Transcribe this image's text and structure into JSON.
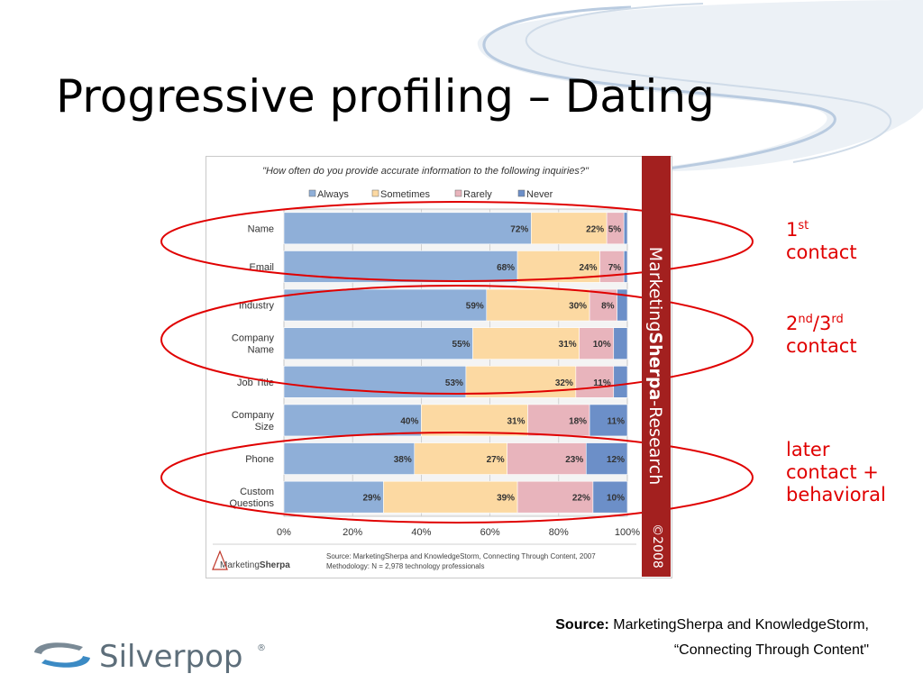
{
  "slide": {
    "title": "Progressive profiling – Dating"
  },
  "chart_data": {
    "type": "bar",
    "orientation": "horizontal",
    "stacked": true,
    "title": "\"How often do you provide accurate information to the following inquiries?\"",
    "categories": [
      [
        "Name"
      ],
      [
        "Email"
      ],
      [
        "Industry"
      ],
      [
        "Company",
        "Name"
      ],
      [
        "Job Title"
      ],
      [
        "Company",
        "Size"
      ],
      [
        "Phone"
      ],
      [
        "Custom",
        "Questions"
      ]
    ],
    "series": [
      {
        "name": "Always",
        "color": "#8fafd8",
        "values": [
          72,
          68,
          59,
          55,
          53,
          40,
          38,
          29
        ]
      },
      {
        "name": "Sometimes",
        "color": "#fcd9a2",
        "values": [
          22,
          24,
          30,
          31,
          32,
          31,
          27,
          39
        ]
      },
      {
        "name": "Rarely",
        "color": "#e8b4bc",
        "values": [
          5,
          7,
          8,
          10,
          11,
          18,
          23,
          22
        ]
      },
      {
        "name": "Never",
        "color": "#6c8fc8",
        "values": [
          1,
          1,
          3,
          4,
          4,
          11,
          12,
          10
        ]
      }
    ],
    "data_labels": [
      [
        "72%",
        "22%",
        "5%",
        ""
      ],
      [
        "68%",
        "24%",
        "7%",
        ""
      ],
      [
        "59%",
        "30%",
        "8%",
        ""
      ],
      [
        "55%",
        "31%",
        "10%",
        ""
      ],
      [
        "53%",
        "32%",
        "11%",
        ""
      ],
      [
        "40%",
        "31%",
        "18%",
        "11%"
      ],
      [
        "38%",
        "27%",
        "23%",
        "12%"
      ],
      [
        "29%",
        "39%",
        "22%",
        "10%"
      ]
    ],
    "xlim": [
      0,
      100
    ],
    "x_ticks": [
      "0%",
      "20%",
      "40%",
      "60%",
      "80%",
      "100%"
    ],
    "grid": true,
    "legend": "top",
    "source_line1": "Source: MarketingSherpa and KnowledgeStorm,  Connecting Through Content, 2007",
    "source_line2": "Methodology: N = 2,978 technology professionals",
    "brand_logo": "MarketingSherpa",
    "sidebar_brand": {
      "part1": "Marketing",
      "part2": "Sherpa",
      "part3": "Research"
    },
    "copyright": "©2008"
  },
  "annotations": {
    "first": {
      "num": "1",
      "sup": "st",
      "text": "contact"
    },
    "second": {
      "num1": "2",
      "sup1": "nd",
      "slash": "/",
      "num2": "3",
      "sup2": "rd",
      "text": "contact"
    },
    "later": {
      "line1": "later",
      "line2": "contact +",
      "line3": "behavioral"
    },
    "ellipse_color": "#e00000"
  },
  "footer": {
    "source_label": "Source:",
    "source_text": " MarketingSherpa and KnowledgeStorm,",
    "source_line2": "“Connecting Through Content\""
  },
  "logo": {
    "text": "Silverpop",
    "mark": "®"
  }
}
